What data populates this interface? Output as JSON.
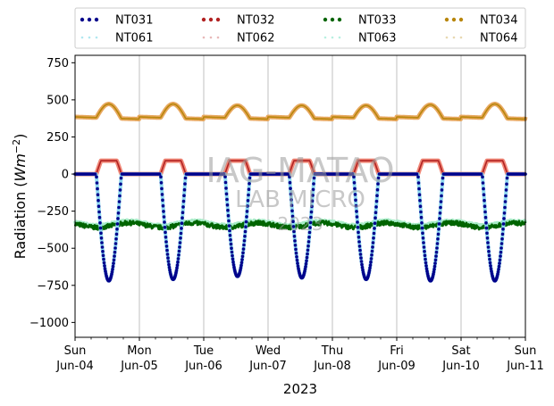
{
  "chart_data": {
    "type": "scatter",
    "title": "",
    "xlabel": "2023",
    "ylabel_main": "Radiation (",
    "ylabel_unit": "Wm",
    "ylabel_exp": "−2",
    "ylabel_close": ")",
    "ylim": [
      -1100,
      800
    ],
    "xlim": [
      0,
      7
    ],
    "yticks": [
      750,
      500,
      250,
      0,
      -250,
      -500,
      -750,
      -1000
    ],
    "ytick_labels": [
      "750",
      "500",
      "250",
      "0",
      "−250",
      "−500",
      "−750",
      "−1000"
    ],
    "xticks": [
      {
        "x": 0,
        "day": "Sun",
        "date": "Jun-04"
      },
      {
        "x": 1,
        "day": "Mon",
        "date": "Jun-05"
      },
      {
        "x": 2,
        "day": "Tue",
        "date": "Jun-06"
      },
      {
        "x": 3,
        "day": "Wed",
        "date": "Jun-07"
      },
      {
        "x": 4,
        "day": "Thu",
        "date": "Jun-08"
      },
      {
        "x": 5,
        "day": "Fri",
        "date": "Jun-09"
      },
      {
        "x": 6,
        "day": "Sat",
        "date": "Jun-10"
      },
      {
        "x": 7,
        "day": "Sun",
        "date": "Jun-11"
      }
    ],
    "grid": "vertical",
    "legend_placement": "top",
    "legend": [
      {
        "name": "NT031",
        "color": "#00008b"
      },
      {
        "name": "NT032",
        "color": "#b22222"
      },
      {
        "name": "NT033",
        "color": "#006400"
      },
      {
        "name": "NT034",
        "color": "#b8860b"
      },
      {
        "name": "NT061",
        "color": "#b0e8f0"
      },
      {
        "name": "NT062",
        "color": "#e8b8b8"
      },
      {
        "name": "NT063",
        "color": "#b8f0e0"
      },
      {
        "name": "NT064",
        "color": "#e8d8b0"
      }
    ],
    "watermark": [
      "IAG-MATAO",
      "LAB MICRO",
      "2023"
    ],
    "series": [
      {
        "name": "NT031",
        "kind": "diurnal_negative",
        "night": 0,
        "day_min": [
          -720,
          -710,
          -690,
          -700,
          -710,
          -720,
          -720
        ]
      },
      {
        "name": "NT032",
        "kind": "diurnal_positive",
        "night": 0,
        "day_max": [
          90,
          90,
          90,
          90,
          90,
          90,
          90
        ]
      },
      {
        "name": "NT033",
        "kind": "noisy_flat",
        "night": -330,
        "day": -360
      },
      {
        "name": "NT034",
        "kind": "diurnal_positive",
        "night": 385,
        "day_max": [
          480,
          480,
          470,
          470,
          470,
          475,
          480
        ]
      }
    ]
  }
}
